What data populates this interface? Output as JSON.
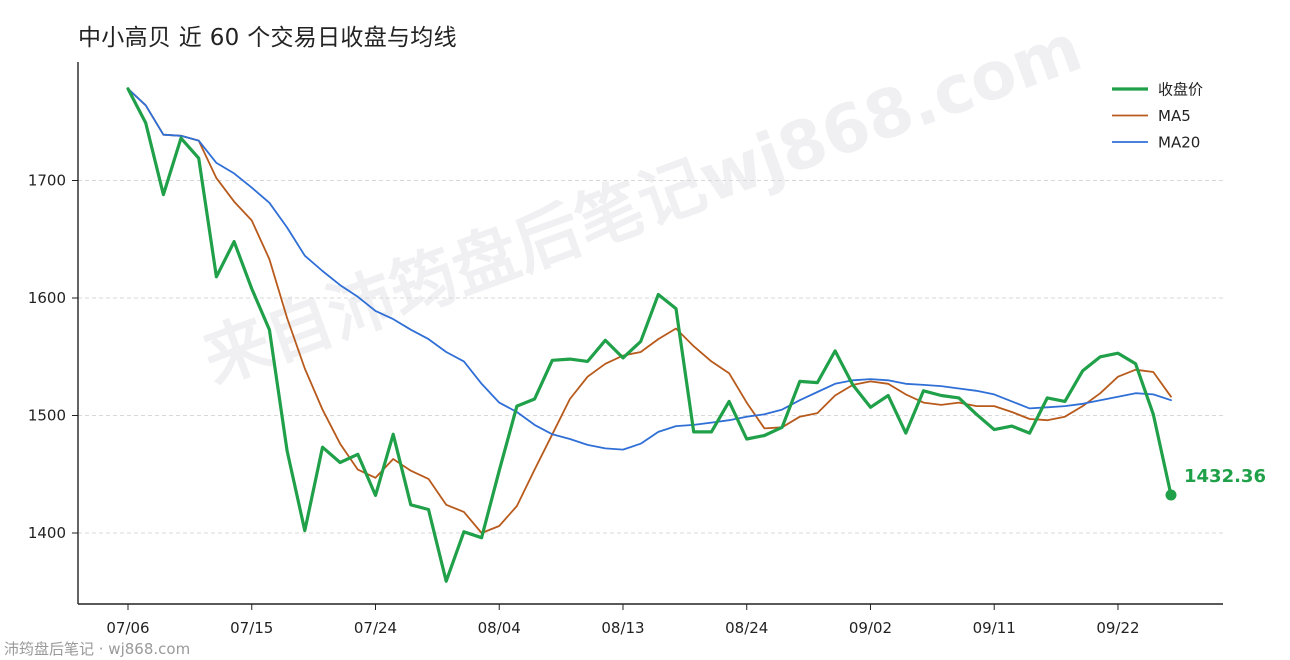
{
  "title": "中小高贝 近 60 个交易日收盘与均线",
  "watermark": "来自沛筠盘后笔记wj868.com",
  "footer": "沛筠盘后笔记 · wj868.com",
  "chart_data": {
    "type": "line",
    "title": "中小高贝 近 60 个交易日收盘与均线",
    "xlabel": "",
    "ylabel": "",
    "ylim": [
      1445,
      1800
    ],
    "yticks": [
      1400,
      1500,
      1600,
      1700
    ],
    "grid": true,
    "legend_position": "top-right",
    "xtick_labels": [
      "07/06",
      "07/15",
      "07/24",
      "08/04",
      "08/13",
      "08/24",
      "09/02",
      "09/11",
      "09/22"
    ],
    "xtick_index": [
      0,
      7,
      14,
      21,
      28,
      35,
      42,
      49,
      56
    ],
    "last_label": "1432.36",
    "series": [
      {
        "name": "收盘价",
        "color": "#1fa049",
        "width": 3.2,
        "values": [
          1778,
          1749,
          1688,
          1736,
          1719,
          1618,
          1648,
          1608,
          1573,
          1470,
          1402,
          1473,
          1460,
          1467,
          1432,
          1484,
          1424,
          1420,
          1359,
          1401,
          1396,
          1453,
          1508,
          1514,
          1547,
          1548,
          1546,
          1564,
          1549,
          1563,
          1603,
          1591,
          1486,
          1486,
          1512,
          1480,
          1483,
          1490,
          1529,
          1528,
          1555,
          1526,
          1507,
          1517,
          1485,
          1521,
          1517,
          1515,
          1501,
          1488,
          1491,
          1485,
          1515,
          1512,
          1538,
          1550,
          1553,
          1544,
          1501,
          1432.36
        ]
      },
      {
        "name": "MA5",
        "color": "#b85a1c",
        "width": 1.8,
        "values": [
          1778,
          1764,
          1739,
          1738,
          1734,
          1702,
          1682,
          1666,
          1633,
          1583,
          1540,
          1505,
          1476,
          1454,
          1447,
          1463,
          1453,
          1446,
          1424,
          1418,
          1400,
          1406,
          1423,
          1454,
          1484,
          1514,
          1533,
          1544,
          1551,
          1554,
          1565,
          1574,
          1559,
          1546,
          1536,
          1511,
          1489,
          1490,
          1499,
          1502,
          1517,
          1526,
          1529,
          1527,
          1518,
          1511,
          1509,
          1511,
          1508,
          1508,
          1503,
          1497,
          1496,
          1499,
          1508,
          1519,
          1533,
          1539,
          1537,
          1516
        ]
      },
      {
        "name": "MA20",
        "color": "#2f6fd6",
        "width": 1.8,
        "values": [
          1778,
          1764,
          1739,
          1738,
          1734,
          1715,
          1706,
          1694,
          1681,
          1660,
          1636,
          1623,
          1611,
          1601,
          1589,
          1582,
          1573,
          1565,
          1554,
          1546,
          1527,
          1511,
          1503,
          1492,
          1484,
          1480,
          1475,
          1472,
          1471,
          1476,
          1486,
          1491,
          1492,
          1494,
          1496,
          1499,
          1501,
          1505,
          1513,
          1520,
          1527,
          1530,
          1531,
          1530,
          1527,
          1526,
          1525,
          1523,
          1521,
          1518,
          1512,
          1506,
          1507,
          1508,
          1510,
          1513,
          1516,
          1519,
          1518,
          1513
        ]
      }
    ]
  }
}
